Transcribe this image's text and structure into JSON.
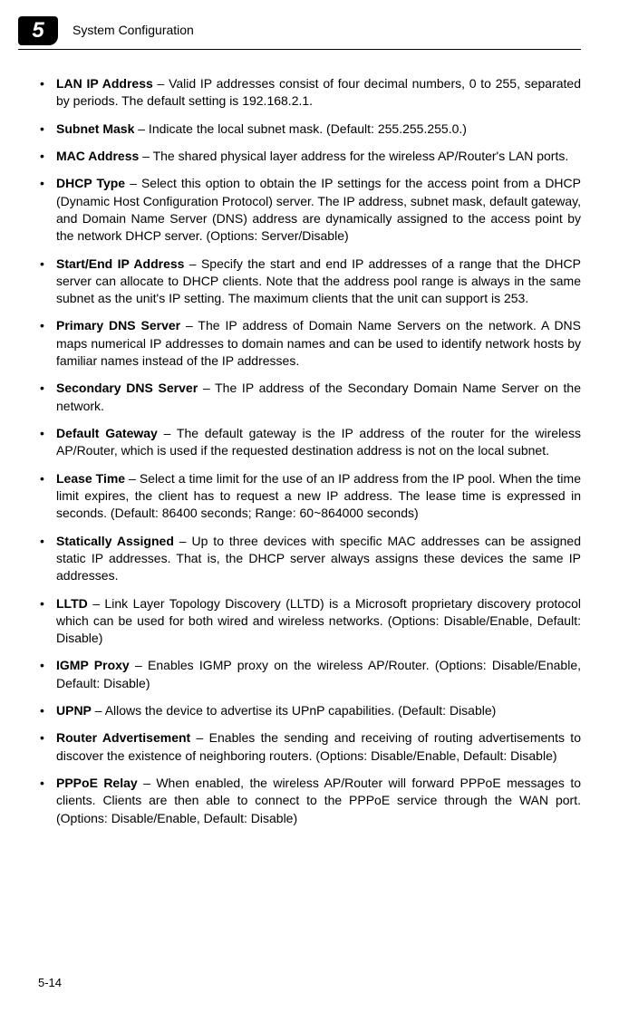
{
  "header": {
    "chapter_number": "5",
    "title": "System Configuration"
  },
  "items": [
    {
      "term": "LAN IP Address",
      "desc": " – Valid IP addresses consist of four decimal numbers, 0 to 255, separated by periods. The default setting is 192.168.2.1."
    },
    {
      "term": "Subnet Mask",
      "desc": " – Indicate the local subnet mask. (Default: 255.255.255.0.)"
    },
    {
      "term": "MAC Address",
      "desc": " – The shared physical layer address for the wireless AP/Router's LAN ports."
    },
    {
      "term": "DHCP Type",
      "desc": " – Select this option to obtain the IP settings for the access point from a DHCP (Dynamic Host Configuration Protocol) server. The IP address, subnet mask, default gateway, and Domain Name Server (DNS) address are dynamically assigned to the access point by the network DHCP server. (Options: Server/Disable)"
    },
    {
      "term": "Start/End IP Address",
      "desc": " – Specify the start and end IP addresses of a range that the DHCP server can allocate to DHCP clients. Note that the address pool range is always in the same subnet as the unit's IP setting. The maximum clients that the unit can support is 253."
    },
    {
      "term": "Primary DNS Server",
      "desc": " – The IP address of Domain Name Servers on the network. A DNS maps numerical IP addresses to domain names and can be used to identify network hosts by familiar names instead of the IP addresses."
    },
    {
      "term": "Secondary DNS Server",
      "desc": " – The IP address of the Secondary Domain Name Server on the network."
    },
    {
      "term": "Default Gateway",
      "desc": " – The default gateway is the IP address of the router for the wireless AP/Router, which is used if the requested destination address is not on the local subnet."
    },
    {
      "term": "Lease Time",
      "desc": " – Select a time limit for the use of an IP address from the IP pool. When the time limit expires, the client has to request a new IP address. The lease time is expressed in seconds. (Default: 86400 seconds; Range: 60~864000 seconds)"
    },
    {
      "term": "Statically Assigned",
      "desc": " – Up to three devices with specific MAC addresses can be assigned static IP addresses. That is, the DHCP server always assigns these devices the same IP addresses."
    },
    {
      "term": "LLTD",
      "desc": " – Link Layer Topology Discovery (LLTD) is a Microsoft proprietary discovery protocol which can be used for both wired and wireless networks. (Options: Disable/Enable, Default: Disable)"
    },
    {
      "term": "IGMP Proxy",
      "desc": " – Enables IGMP proxy on the wireless AP/Router. (Options: Disable/Enable, Default: Disable)"
    },
    {
      "term": "UPNP",
      "desc": " – Allows the device to advertise its UPnP capabilities. (Default: Disable)"
    },
    {
      "term": "Router Advertisement",
      "desc": " – Enables the sending and receiving of routing advertisements to discover the existence of neighboring routers. (Options: Disable/Enable, Default: Disable)"
    },
    {
      "term": "PPPoE Relay",
      "desc": " – When enabled, the wireless AP/Router will forward PPPoE messages to clients. Clients are then able to connect to the PPPoE service through the WAN port. (Options: Disable/Enable, Default: Disable)"
    }
  ],
  "page_number": "5-14"
}
